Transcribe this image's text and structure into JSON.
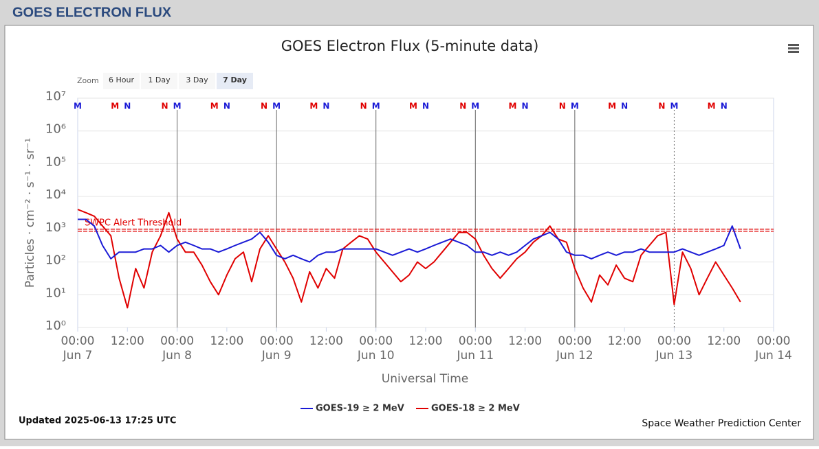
{
  "header": {
    "title": "GOES ELECTRON FLUX"
  },
  "zoom": {
    "label": "Zoom",
    "buttons": [
      "6 Hour",
      "1 Day",
      "3 Day",
      "7 Day"
    ],
    "selected": "7 Day"
  },
  "updated": "Updated 2025-06-13 17:25 UTC",
  "credit": "Space Weather Prediction Center",
  "chart_data": {
    "type": "line",
    "title": "GOES Electron Flux (5-minute data)",
    "x_label": "Universal Time",
    "y_label": "Particles · cm⁻² · s⁻¹ · sr⁻¹",
    "log_y": true,
    "grid": true,
    "xlim": [
      "Jun 7 00:00",
      "Jun 14 00:00"
    ],
    "xticks": [
      {
        "value": "Jun 7 00:00",
        "label": [
          "00:00",
          "Jun 7"
        ]
      },
      {
        "value": "Jun 7 12:00",
        "label": "12:00"
      },
      {
        "value": "Jun 8 00:00",
        "label": [
          "00:00",
          "Jun 8"
        ]
      },
      {
        "value": "Jun 8 12:00",
        "label": "12:00"
      },
      {
        "value": "Jun 9 00:00",
        "label": [
          "00:00",
          "Jun 9"
        ]
      },
      {
        "value": "Jun 9 12:00",
        "label": "12:00"
      },
      {
        "value": "Jun 10 00:00",
        "label": [
          "00:00",
          "Jun 10"
        ]
      },
      {
        "value": "Jun 10 12:00",
        "label": "12:00"
      },
      {
        "value": "Jun 11 00:00",
        "label": [
          "00:00",
          "Jun 11"
        ]
      },
      {
        "value": "Jun 11 12:00",
        "label": "12:00"
      },
      {
        "value": "Jun 12 00:00",
        "label": [
          "00:00",
          "Jun 12"
        ]
      },
      {
        "value": "Jun 12 12:00",
        "label": "12:00"
      },
      {
        "value": "Jun 13 00:00",
        "label": [
          "00:00",
          "Jun 13"
        ]
      },
      {
        "value": "Jun 13 12:00",
        "label": "12:00"
      },
      {
        "value": "Jun 14 00:00",
        "label": [
          "00:00",
          "Jun 14"
        ]
      }
    ],
    "ylim": [
      1,
      10000000
    ],
    "yticks": [
      {
        "value": 1,
        "label": "10⁰"
      },
      {
        "value": 10,
        "label": "10¹"
      },
      {
        "value": 100,
        "label": "10²"
      },
      {
        "value": 1000,
        "label": "10³"
      },
      {
        "value": 10000,
        "label": "10⁴"
      },
      {
        "value": 100000,
        "label": "10⁵"
      },
      {
        "value": 1000000,
        "label": "10⁶"
      },
      {
        "value": 10000000,
        "label": "10⁷"
      }
    ],
    "threshold": {
      "value": 1000,
      "text": "SWPC Alert Threshold",
      "color": "#e00000"
    },
    "local_time_markers": [
      {
        "label": "M",
        "color": "#e00000",
        "x": [
          "Jun 7 09:00",
          "Jun 8 09:00",
          "Jun 9 09:00",
          "Jun 10 09:00",
          "Jun 11 09:00",
          "Jun 12 09:00",
          "Jun 13 09:00"
        ]
      },
      {
        "label": "N",
        "color": "#e00000",
        "x": [
          "Jun 7 21:00",
          "Jun 8 21:00",
          "Jun 9 21:00",
          "Jun 10 21:00",
          "Jun 11 21:00",
          "Jun 12 21:00"
        ]
      },
      {
        "label": "M",
        "color": "#1a1ad6",
        "x": [
          "Jun 7 00:00",
          "Jun 8 00:00",
          "Jun 9 00:00",
          "Jun 10 00:00",
          "Jun 11 00:00",
          "Jun 12 00:00",
          "Jun 13 00:00"
        ]
      },
      {
        "label": "N",
        "color": "#1a1ad6",
        "x": [
          "Jun 7 12:00",
          "Jun 8 12:00",
          "Jun 9 12:00",
          "Jun 10 12:00",
          "Jun 11 12:00",
          "Jun 12 12:00",
          "Jun 13 12:00"
        ]
      }
    ],
    "x": [
      "Jun 7 00:00",
      "Jun 7 02:00",
      "Jun 7 04:00",
      "Jun 7 06:00",
      "Jun 7 08:00",
      "Jun 7 10:00",
      "Jun 7 12:00",
      "Jun 7 14:00",
      "Jun 7 16:00",
      "Jun 7 18:00",
      "Jun 7 20:00",
      "Jun 7 22:00",
      "Jun 8 00:00",
      "Jun 8 02:00",
      "Jun 8 04:00",
      "Jun 8 06:00",
      "Jun 8 08:00",
      "Jun 8 10:00",
      "Jun 8 12:00",
      "Jun 8 14:00",
      "Jun 8 16:00",
      "Jun 8 18:00",
      "Jun 8 20:00",
      "Jun 8 22:00",
      "Jun 9 00:00",
      "Jun 9 02:00",
      "Jun 9 04:00",
      "Jun 9 06:00",
      "Jun 9 08:00",
      "Jun 9 10:00",
      "Jun 9 12:00",
      "Jun 9 14:00",
      "Jun 9 16:00",
      "Jun 9 18:00",
      "Jun 9 20:00",
      "Jun 9 22:00",
      "Jun 10 00:00",
      "Jun 10 02:00",
      "Jun 10 04:00",
      "Jun 10 06:00",
      "Jun 10 08:00",
      "Jun 10 10:00",
      "Jun 10 12:00",
      "Jun 10 14:00",
      "Jun 10 16:00",
      "Jun 10 18:00",
      "Jun 10 20:00",
      "Jun 10 22:00",
      "Jun 11 00:00",
      "Jun 11 02:00",
      "Jun 11 04:00",
      "Jun 11 06:00",
      "Jun 11 08:00",
      "Jun 11 10:00",
      "Jun 11 12:00",
      "Jun 11 14:00",
      "Jun 11 16:00",
      "Jun 11 18:00",
      "Jun 11 20:00",
      "Jun 11 22:00",
      "Jun 12 00:00",
      "Jun 12 02:00",
      "Jun 12 04:00",
      "Jun 12 06:00",
      "Jun 12 08:00",
      "Jun 12 10:00",
      "Jun 12 12:00",
      "Jun 12 14:00",
      "Jun 12 16:00",
      "Jun 12 18:00",
      "Jun 12 20:00",
      "Jun 12 22:00",
      "Jun 13 00:00",
      "Jun 13 02:00",
      "Jun 13 04:00",
      "Jun 13 06:00",
      "Jun 13 08:00",
      "Jun 13 10:00",
      "Jun 13 12:00",
      "Jun 13 14:00",
      "Jun 13 16:00"
    ],
    "series": [
      {
        "name": "GOES-19 ≥ 2 MeV",
        "color": "#1a1ad6",
        "values": [
          2000,
          2000,
          1250,
          320,
          125,
          200,
          200,
          200,
          250,
          250,
          320,
          200,
          320,
          400,
          320,
          250,
          250,
          200,
          250,
          320,
          400,
          500,
          800,
          400,
          160,
          125,
          160,
          125,
          100,
          160,
          200,
          200,
          250,
          250,
          250,
          250,
          250,
          200,
          160,
          200,
          250,
          200,
          250,
          320,
          400,
          500,
          400,
          320,
          200,
          200,
          160,
          200,
          160,
          200,
          320,
          500,
          630,
          800,
          500,
          200,
          160,
          160,
          125,
          160,
          200,
          160,
          200,
          200,
          250,
          200,
          200,
          200,
          200,
          250,
          200,
          160,
          200,
          250,
          320,
          1250,
          250
        ]
      },
      {
        "name": "GOES-18 ≥ 2 MeV",
        "color": "#e00000",
        "values": [
          4000,
          3200,
          2500,
          1250,
          630,
          32,
          4,
          63,
          16,
          200,
          630,
          3200,
          500,
          200,
          200,
          80,
          25,
          10,
          40,
          125,
          200,
          25,
          250,
          630,
          250,
          100,
          32,
          6,
          50,
          16,
          63,
          32,
          250,
          400,
          630,
          500,
          200,
          100,
          50,
          25,
          40,
          100,
          63,
          100,
          200,
          400,
          800,
          800,
          500,
          160,
          63,
          32,
          63,
          125,
          200,
          400,
          630,
          1250,
          500,
          400,
          63,
          16,
          6,
          40,
          20,
          80,
          32,
          25,
          160,
          320,
          630,
          800,
          5,
          200,
          63,
          10,
          32,
          100,
          40,
          16,
          6
        ]
      }
    ]
  }
}
